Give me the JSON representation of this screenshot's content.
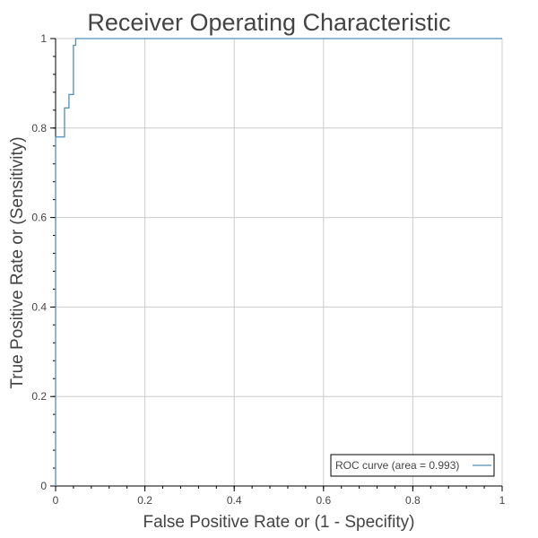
{
  "chart_data": {
    "type": "line",
    "title": "Receiver Operating Characteristic",
    "xlabel": "False Positive Rate or (1 - Specifity)",
    "ylabel": "True Positive Rate or (Sensitivity)",
    "xlim": [
      0,
      1
    ],
    "ylim": [
      0,
      1
    ],
    "grid": true,
    "legend_position": "bottom-right",
    "x_ticks": [
      "0",
      "0.2",
      "0.4",
      "0.6",
      "0.8",
      "1"
    ],
    "y_ticks": [
      "0",
      "0.2",
      "0.4",
      "0.6",
      "0.8",
      "1"
    ],
    "series": [
      {
        "name": "ROC curve (area = 0.993)",
        "color": "#4e8fb8",
        "x": [
          0,
          0,
          0.02,
          0.02,
          0.025,
          0.025,
          0.03,
          0.03,
          0.04,
          0.04,
          0.045,
          0.045,
          1
        ],
        "y": [
          0,
          0.78,
          0.78,
          0.845,
          0.845,
          0.845,
          0.845,
          0.875,
          0.875,
          0.985,
          0.985,
          1,
          1
        ]
      }
    ]
  }
}
